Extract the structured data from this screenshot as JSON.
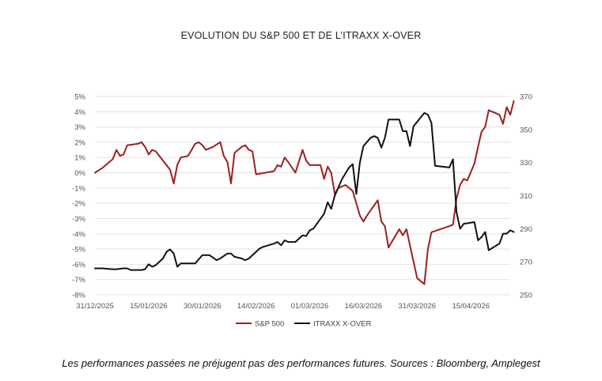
{
  "title": "EVOLUTION DU S&P 500 ET DE L’ITRAXX X-OVER",
  "footnote": "Les performances passées ne préjugent pas des performances futures.  Sources : Bloomberg, Amplegest",
  "chart_data": {
    "type": "line",
    "title": "EVOLUTION DU S&P 500 ET DE L’ITRAXX X-OVER",
    "x_tick_labels": [
      "31/12/2025",
      "15/01/2026",
      "30/01/2026",
      "14/02/2026",
      "01/03/2026",
      "16/03/2026",
      "31/03/2026",
      "15/04/2026"
    ],
    "x_start": "2025-12-31",
    "x_end": "2026-04-26",
    "y_left": {
      "ylim": [
        -8,
        5
      ],
      "ticks": [
        "5%",
        "4%",
        "3%",
        "2%",
        "1%",
        "0%",
        "-1%",
        "-2%",
        "-3%",
        "-4%",
        "-5%",
        "-6%",
        "-7%",
        "-8%"
      ]
    },
    "y_right": {
      "ylim": [
        250,
        370
      ],
      "ticks": [
        "370",
        "350",
        "330",
        "310",
        "290",
        "270",
        "250"
      ]
    },
    "legend_position": "bottom",
    "grid": true,
    "series": [
      {
        "name": "S&P 500",
        "axis": "left",
        "color": "#9e1f1f",
        "points": [
          [
            "2025-12-31",
            0.0
          ],
          [
            "2026-01-02",
            0.3
          ],
          [
            "2026-01-05",
            0.9
          ],
          [
            "2026-01-06",
            1.5
          ],
          [
            "2026-01-07",
            1.1
          ],
          [
            "2026-01-08",
            1.2
          ],
          [
            "2026-01-09",
            1.8
          ],
          [
            "2026-01-12",
            1.9
          ],
          [
            "2026-01-13",
            2.0
          ],
          [
            "2026-01-14",
            1.7
          ],
          [
            "2026-01-15",
            1.2
          ],
          [
            "2026-01-16",
            1.5
          ],
          [
            "2026-01-17",
            1.4
          ],
          [
            "2026-01-20",
            0.5
          ],
          [
            "2026-01-21",
            0.2
          ],
          [
            "2026-01-22",
            -0.7
          ],
          [
            "2026-01-23",
            0.5
          ],
          [
            "2026-01-24",
            1.0
          ],
          [
            "2026-01-26",
            1.1
          ],
          [
            "2026-01-27",
            1.5
          ],
          [
            "2026-01-28",
            1.9
          ],
          [
            "2026-01-29",
            2.0
          ],
          [
            "2026-01-30",
            1.8
          ],
          [
            "2026-01-31",
            1.5
          ],
          [
            "2026-02-02",
            1.7
          ],
          [
            "2026-02-04",
            2.0
          ],
          [
            "2026-02-05",
            1.1
          ],
          [
            "2026-02-06",
            0.7
          ],
          [
            "2026-02-07",
            -0.7
          ],
          [
            "2026-02-08",
            1.3
          ],
          [
            "2026-02-10",
            1.7
          ],
          [
            "2026-02-11",
            1.8
          ],
          [
            "2026-02-12",
            1.5
          ],
          [
            "2026-02-13",
            1.4
          ],
          [
            "2026-02-14",
            -0.1
          ],
          [
            "2026-02-19",
            0.1
          ],
          [
            "2026-02-20",
            0.5
          ],
          [
            "2026-02-21",
            0.4
          ],
          [
            "2026-02-22",
            1.0
          ],
          [
            "2026-02-23",
            0.7
          ],
          [
            "2026-02-25",
            0.0
          ],
          [
            "2026-02-27",
            1.5
          ],
          [
            "2026-02-28",
            0.8
          ],
          [
            "2026-03-01",
            0.5
          ],
          [
            "2026-03-02",
            0.5
          ],
          [
            "2026-03-04",
            0.5
          ],
          [
            "2026-03-05",
            -0.4
          ],
          [
            "2026-03-06",
            0.4
          ],
          [
            "2026-03-07",
            0.0
          ],
          [
            "2026-03-08",
            -1.4
          ],
          [
            "2026-03-09",
            -1.0
          ],
          [
            "2026-03-11",
            -0.8
          ],
          [
            "2026-03-12",
            -1.0
          ],
          [
            "2026-03-13",
            -1.2
          ],
          [
            "2026-03-14",
            -2.0
          ],
          [
            "2026-03-15",
            -2.8
          ],
          [
            "2026-03-16",
            -3.2
          ],
          [
            "2026-03-17",
            -2.8
          ],
          [
            "2026-03-20",
            -1.8
          ],
          [
            "2026-03-21",
            -3.2
          ],
          [
            "2026-03-22",
            -3.5
          ],
          [
            "2026-03-23",
            -4.9
          ],
          [
            "2026-03-24",
            -4.5
          ],
          [
            "2026-03-25",
            -4.1
          ],
          [
            "2026-03-26",
            -3.7
          ],
          [
            "2026-03-27",
            -4.1
          ],
          [
            "2026-03-28",
            -3.7
          ],
          [
            "2026-03-31",
            -6.9
          ],
          [
            "2026-04-02",
            -7.3
          ],
          [
            "2026-04-03",
            -5.0
          ],
          [
            "2026-04-04",
            -3.9
          ],
          [
            "2026-04-09",
            -3.5
          ],
          [
            "2026-04-10",
            -3.4
          ],
          [
            "2026-04-11",
            -1.7
          ],
          [
            "2026-04-12",
            -0.8
          ],
          [
            "2026-04-13",
            -0.4
          ],
          [
            "2026-04-14",
            -0.5
          ],
          [
            "2026-04-16",
            0.6
          ],
          [
            "2026-04-17",
            1.7
          ],
          [
            "2026-04-18",
            2.7
          ],
          [
            "2026-04-19",
            3.0
          ],
          [
            "2026-04-20",
            4.1
          ],
          [
            "2026-04-23",
            3.8
          ],
          [
            "2026-04-24",
            3.2
          ],
          [
            "2026-04-25",
            4.3
          ],
          [
            "2026-04-26",
            3.8
          ],
          [
            "2026-04-27",
            4.7
          ]
        ]
      },
      {
        "name": "ITRAXX X-OVER",
        "axis": "right",
        "color": "#111111",
        "points": [
          [
            "2025-12-31",
            266
          ],
          [
            "2026-01-02",
            266
          ],
          [
            "2026-01-05",
            265.5
          ],
          [
            "2026-01-06",
            265.5
          ],
          [
            "2026-01-08",
            266
          ],
          [
            "2026-01-09",
            266
          ],
          [
            "2026-01-10",
            265
          ],
          [
            "2026-01-13",
            265
          ],
          [
            "2026-01-14",
            265.5
          ],
          [
            "2026-01-15",
            268.5
          ],
          [
            "2026-01-16",
            267
          ],
          [
            "2026-01-17",
            268
          ],
          [
            "2026-01-19",
            272
          ],
          [
            "2026-01-20",
            276
          ],
          [
            "2026-01-21",
            277.5
          ],
          [
            "2026-01-22",
            275
          ],
          [
            "2026-01-23",
            267
          ],
          [
            "2026-01-24",
            269
          ],
          [
            "2026-01-27",
            269
          ],
          [
            "2026-01-28",
            269
          ],
          [
            "2026-01-30",
            274
          ],
          [
            "2026-02-01",
            274
          ],
          [
            "2026-02-03",
            271
          ],
          [
            "2026-02-04",
            272
          ],
          [
            "2026-02-06",
            275
          ],
          [
            "2026-02-07",
            275
          ],
          [
            "2026-02-08",
            273
          ],
          [
            "2026-02-10",
            272
          ],
          [
            "2026-02-11",
            271
          ],
          [
            "2026-02-12",
            272
          ],
          [
            "2026-02-15",
            278
          ],
          [
            "2026-02-16",
            279
          ],
          [
            "2026-02-19",
            281
          ],
          [
            "2026-02-20",
            282
          ],
          [
            "2026-02-21",
            280
          ],
          [
            "2026-02-22",
            283
          ],
          [
            "2026-02-23",
            282
          ],
          [
            "2026-02-25",
            282
          ],
          [
            "2026-02-26",
            284
          ],
          [
            "2026-02-27",
            286
          ],
          [
            "2026-02-28",
            285.5
          ],
          [
            "2026-03-01",
            289
          ],
          [
            "2026-03-02",
            290
          ],
          [
            "2026-03-04",
            296
          ],
          [
            "2026-03-05",
            299
          ],
          [
            "2026-03-06",
            306
          ],
          [
            "2026-03-07",
            302
          ],
          [
            "2026-03-08",
            310
          ],
          [
            "2026-03-10",
            320
          ],
          [
            "2026-03-12",
            327
          ],
          [
            "2026-03-13",
            329
          ],
          [
            "2026-03-14",
            311
          ],
          [
            "2026-03-15",
            330
          ],
          [
            "2026-03-16",
            340
          ],
          [
            "2026-03-18",
            345
          ],
          [
            "2026-03-19",
            346
          ],
          [
            "2026-03-20",
            345
          ],
          [
            "2026-03-21",
            339
          ],
          [
            "2026-03-22",
            345
          ],
          [
            "2026-03-23",
            356
          ],
          [
            "2026-03-26",
            356
          ],
          [
            "2026-03-27",
            349
          ],
          [
            "2026-03-28",
            349
          ],
          [
            "2026-03-29",
            340
          ],
          [
            "2026-03-30",
            352
          ],
          [
            "2026-04-02",
            360
          ],
          [
            "2026-04-03",
            359
          ],
          [
            "2026-04-04",
            354
          ],
          [
            "2026-04-05",
            328
          ],
          [
            "2026-04-09",
            327
          ],
          [
            "2026-04-10",
            332
          ],
          [
            "2026-04-11",
            300
          ],
          [
            "2026-04-12",
            290
          ],
          [
            "2026-04-13",
            293
          ],
          [
            "2026-04-16",
            294
          ],
          [
            "2026-04-17",
            283
          ],
          [
            "2026-04-18",
            285
          ],
          [
            "2026-04-19",
            288
          ],
          [
            "2026-04-20",
            277
          ],
          [
            "2026-04-23",
            281
          ],
          [
            "2026-04-24",
            287
          ],
          [
            "2026-04-25",
            287
          ],
          [
            "2026-04-26",
            289
          ],
          [
            "2026-04-27",
            288
          ]
        ]
      }
    ]
  }
}
